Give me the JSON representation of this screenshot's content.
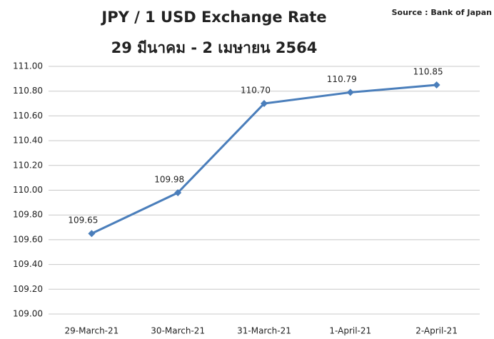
{
  "chart_data": {
    "type": "line",
    "title": "JPY / 1 USD Exchange Rate",
    "subtitle": "29 มีนาคม - 2 เมษายน 2564",
    "annotation": "Source : Bank of Japan",
    "categories": [
      "29-March-21",
      "30-March-21",
      "31-March-21",
      "1-April-21",
      "2-April-21"
    ],
    "series": [
      {
        "name": "JPY / 1 USD",
        "color": "#4a7ebb",
        "values": [
          109.65,
          109.98,
          110.7,
          110.79,
          110.85
        ],
        "value_labels": [
          "109.65",
          "109.98",
          "110.70",
          "110.79",
          "110.85"
        ]
      }
    ],
    "ylim": [
      109,
      111
    ],
    "yticks": [
      {
        "value": 109,
        "label": "109.00"
      },
      {
        "value": 109.2,
        "label": "109.20"
      },
      {
        "value": 109.4,
        "label": "109.40"
      },
      {
        "value": 109.6,
        "label": "109.60"
      },
      {
        "value": 109.8,
        "label": "109.80"
      },
      {
        "value": 110,
        "label": "110.00"
      },
      {
        "value": 110.2,
        "label": "110.20"
      },
      {
        "value": 110.4,
        "label": "110.40"
      },
      {
        "value": 110.6,
        "label": "110.60"
      },
      {
        "value": 110.8,
        "label": "110.80"
      },
      {
        "value": 111,
        "label": "111.00"
      }
    ],
    "grid": true
  }
}
